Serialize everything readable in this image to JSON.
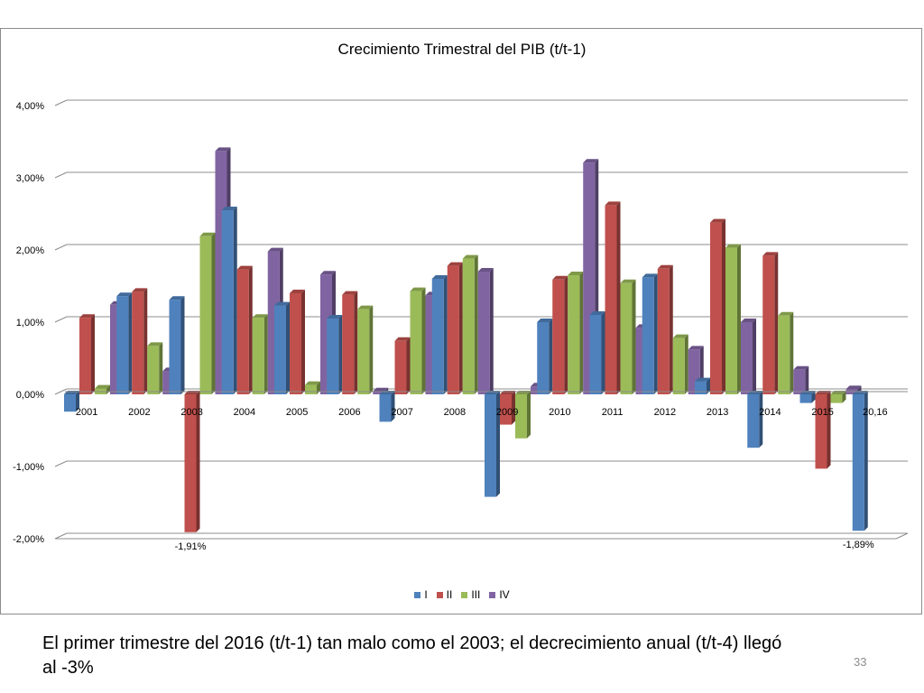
{
  "chart_data": {
    "type": "bar",
    "title": "Crecimiento Trimestral del PIB (t/t-1)",
    "categories": [
      "2001",
      "2002",
      "2003",
      "2004",
      "2005",
      "2006",
      "2007",
      "2008",
      "2009",
      "2010",
      "2011",
      "2012",
      "2013",
      "2014",
      "2015",
      "20,16"
    ],
    "series": [
      {
        "name": "I",
        "color": "#4f81bd",
        "values": [
          -0.24,
          1.36,
          1.31,
          2.55,
          1.23,
          1.05,
          -0.38,
          1.6,
          -1.42,
          1.0,
          1.1,
          1.62,
          0.18,
          -0.74,
          -0.12,
          -1.89
        ]
      },
      {
        "name": "II",
        "color": "#c0504d",
        "values": [
          1.06,
          1.42,
          -1.91,
          1.73,
          1.4,
          1.38,
          0.74,
          1.78,
          -0.42,
          1.59,
          2.62,
          1.74,
          2.38,
          1.92,
          -1.03,
          null
        ]
      },
      {
        "name": "III",
        "color": "#9bbb59",
        "values": [
          0.08,
          0.67,
          2.19,
          1.06,
          0.13,
          1.18,
          1.43,
          1.88,
          -0.61,
          1.65,
          1.54,
          0.78,
          2.03,
          1.09,
          -0.12,
          null
        ]
      },
      {
        "name": "IV",
        "color": "#8064a2",
        "values": [
          1.24,
          0.32,
          3.37,
          1.98,
          1.66,
          0.04,
          1.37,
          1.7,
          0.11,
          3.21,
          0.92,
          0.62,
          1.0,
          0.34,
          0.07,
          null
        ]
      }
    ],
    "ylim": [
      -2.0,
      4.0
    ],
    "yticks": [
      "-2,00%",
      "-1,00%",
      "0,00%",
      "1,00%",
      "2,00%",
      "3,00%",
      "4,00%"
    ],
    "ytick_values": [
      -2,
      -1,
      0,
      1,
      2,
      3,
      4
    ],
    "annotations": [
      {
        "text": "-1,91%",
        "category": "2003",
        "series": "II"
      },
      {
        "text": "-1,89%",
        "category": "20,16",
        "series": "I"
      }
    ],
    "grid": true,
    "legend": "bottom"
  },
  "caption": "El primer trimestre del 2016 (t/t-1) tan malo como el 2003; el decrecimiento anual (t/t-4) llegó al -3%",
  "page_number": "33"
}
